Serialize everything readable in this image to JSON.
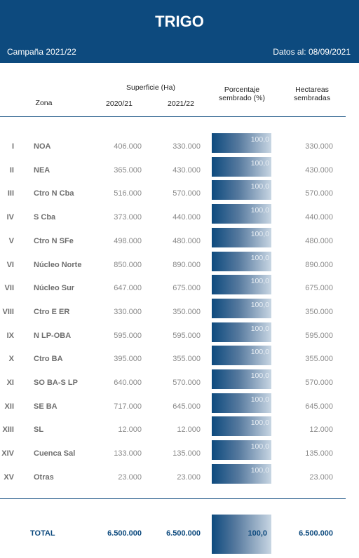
{
  "header": {
    "title": "TRIGO",
    "campaign": "Campaña 2021/22",
    "date": "Datos al: 08/09/2021"
  },
  "columns": {
    "zone": "Zona",
    "surface": "Superficie (Ha)",
    "y1": "2020/21",
    "y2": "2021/22",
    "pct_line1": "Porcentaje",
    "pct_line2": "sembrado (%)",
    "ha_line1": "Hectareas",
    "ha_line2": "sembradas"
  },
  "rows": [
    {
      "num": "I",
      "zone": "NOA",
      "v1": "406.000",
      "v2": "330.000",
      "pct": "100,0",
      "ha": "330.000"
    },
    {
      "num": "II",
      "zone": "NEA",
      "v1": "365.000",
      "v2": "430.000",
      "pct": "100,0",
      "ha": "430.000"
    },
    {
      "num": "III",
      "zone": "Ctro N Cba",
      "v1": "516.000",
      "v2": "570.000",
      "pct": "100,0",
      "ha": "570.000"
    },
    {
      "num": "IV",
      "zone": "S Cba",
      "v1": "373.000",
      "v2": "440.000",
      "pct": "100,0",
      "ha": "440.000"
    },
    {
      "num": "V",
      "zone": "Ctro N SFe",
      "v1": "498.000",
      "v2": "480.000",
      "pct": "100,0",
      "ha": "480.000"
    },
    {
      "num": "VI",
      "zone": "Núcleo Norte",
      "v1": "850.000",
      "v2": "890.000",
      "pct": "100,0",
      "ha": "890.000"
    },
    {
      "num": "VII",
      "zone": "Núcleo Sur",
      "v1": "647.000",
      "v2": "675.000",
      "pct": "100,0",
      "ha": "675.000"
    },
    {
      "num": "VIII",
      "zone": "Ctro E ER",
      "v1": "330.000",
      "v2": "350.000",
      "pct": "100,0",
      "ha": "350.000"
    },
    {
      "num": "IX",
      "zone": "N LP-OBA",
      "v1": "595.000",
      "v2": "595.000",
      "pct": "100,0",
      "ha": "595.000"
    },
    {
      "num": "X",
      "zone": "Ctro BA",
      "v1": "395.000",
      "v2": "355.000",
      "pct": "100,0",
      "ha": "355.000"
    },
    {
      "num": "XI",
      "zone": "SO BA-S LP",
      "v1": "640.000",
      "v2": "570.000",
      "pct": "100,0",
      "ha": "570.000"
    },
    {
      "num": "XII",
      "zone": "SE BA",
      "v1": "717.000",
      "v2": "645.000",
      "pct": "100,0",
      "ha": "645.000"
    },
    {
      "num": "XIII",
      "zone": "SL",
      "v1": "12.000",
      "v2": "12.000",
      "pct": "100,0",
      "ha": "12.000"
    },
    {
      "num": "XIV",
      "zone": "Cuenca Sal",
      "v1": "133.000",
      "v2": "135.000",
      "pct": "100,0",
      "ha": "135.000"
    },
    {
      "num": "XV",
      "zone": "Otras",
      "v1": "23.000",
      "v2": "23.000",
      "pct": "100,0",
      "ha": "23.000"
    }
  ],
  "total": {
    "label": "TOTAL",
    "v1": "6.500.000",
    "v2": "6.500.000",
    "pct": "100,0",
    "ha": "6.500.000"
  },
  "colors": {
    "brand": "#0d4a7e",
    "text_gray": "#8a8a8a"
  }
}
